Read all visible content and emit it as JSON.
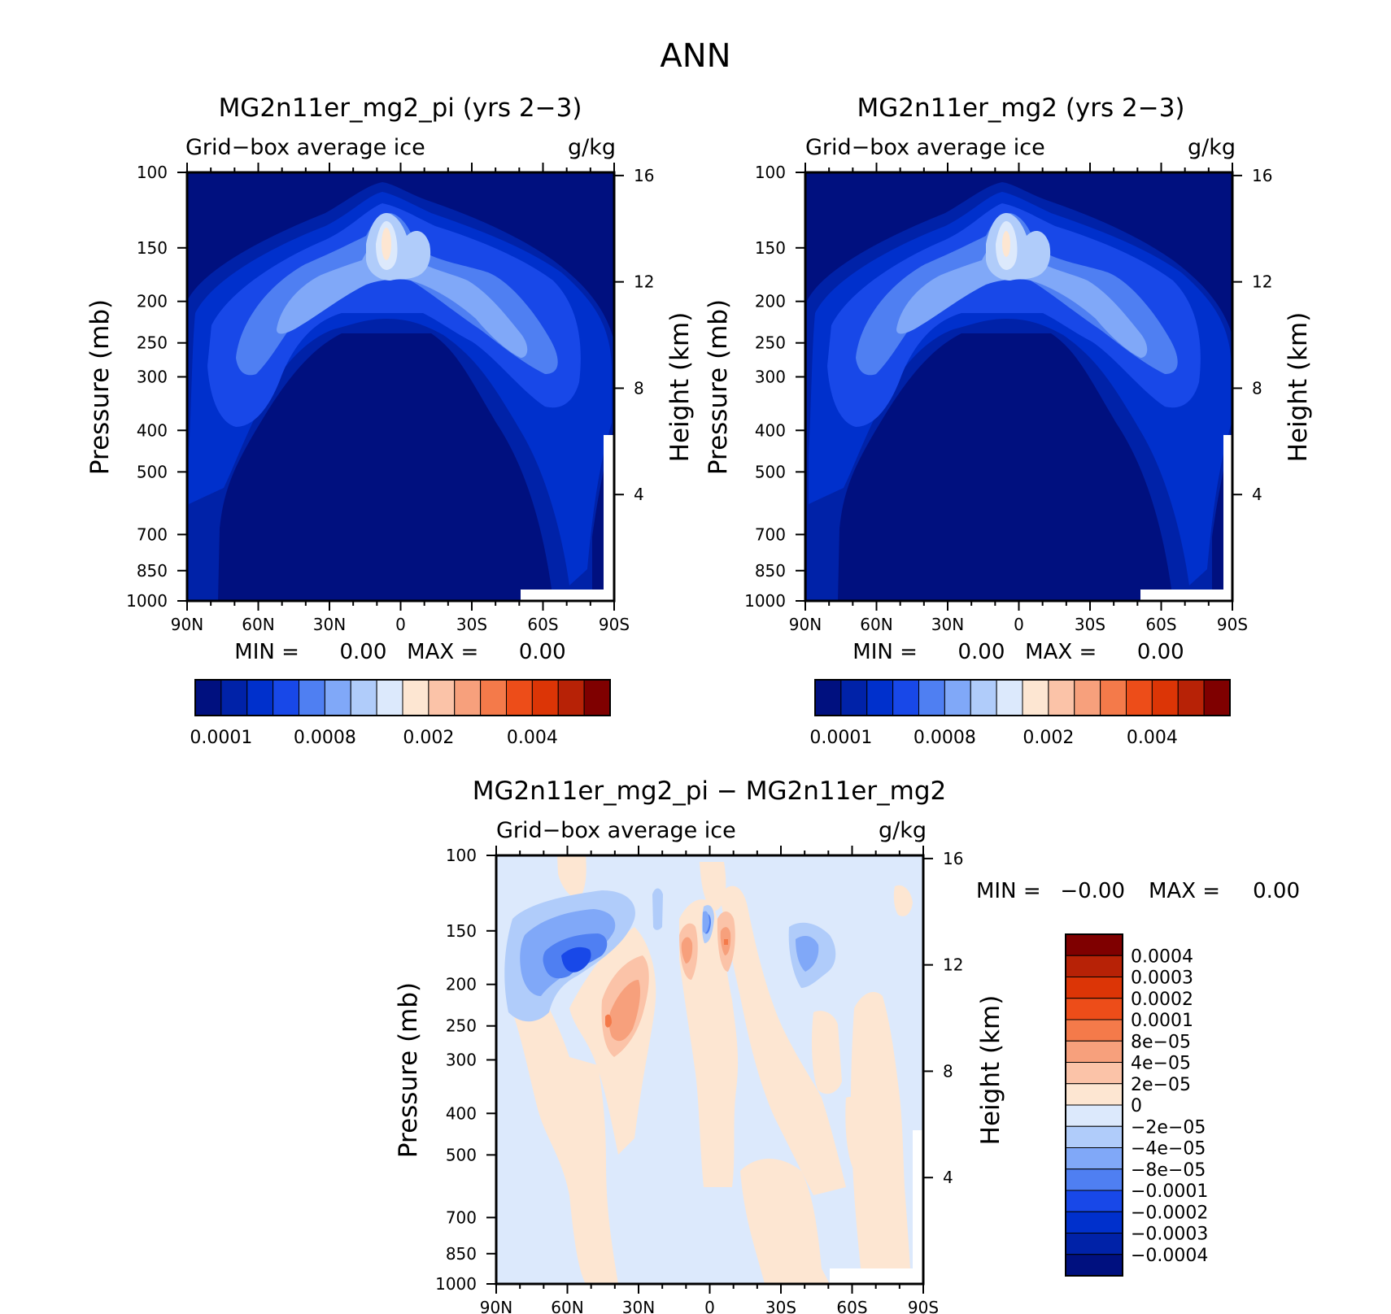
{
  "main_title": "ANN",
  "panels": [
    {
      "title": "MG2n11er_mg2_pi (yrs 2−3)",
      "left_label": "Grid−box average ice",
      "right_label": "g/kg",
      "ylabel_left": "Pressure (mb)",
      "ylabel_right": "Height (km)",
      "min_max": "MIN =      0.00   MAX =      0.00"
    },
    {
      "title": "MG2n11er_mg2 (yrs 2−3)",
      "left_label": "Grid−box average ice",
      "right_label": "g/kg",
      "ylabel_left": "Pressure (mb)",
      "ylabel_right": "Height (km)",
      "min_max": "MIN =      0.00   MAX =      0.00"
    },
    {
      "title": "MG2n11er_mg2_pi − MG2n11er_mg2",
      "left_label": "Grid−box average ice",
      "right_label": "g/kg",
      "ylabel_left": "Pressure (mb)",
      "ylabel_right": "Height (km)",
      "min_label": "MIN =",
      "min_value": "−0.00",
      "max_label": "MAX =",
      "max_value": "0.00"
    }
  ],
  "chart_data": {
    "type": "heatmap",
    "x_ticks": [
      "90N",
      "60N",
      "30N",
      "0",
      "30S",
      "60S",
      "90S"
    ],
    "x_values": [
      90,
      60,
      30,
      0,
      -30,
      -60,
      -90
    ],
    "pressure_ticks": [
      "100",
      "150",
      "200",
      "250",
      "300",
      "400",
      "500",
      "700",
      "850",
      "1000"
    ],
    "pressure_values": [
      100,
      150,
      200,
      250,
      300,
      400,
      500,
      700,
      850,
      1000
    ],
    "height_ticks": [
      "16",
      "12",
      "8",
      "4"
    ],
    "height_values": [
      16,
      12,
      8,
      4
    ],
    "ylim_pressure": [
      1000,
      100
    ],
    "top_colorbar": {
      "colors": [
        "#00107f",
        "#0022a8",
        "#0030cc",
        "#1848e8",
        "#4f7ff2",
        "#80a8f8",
        "#b0ccfa",
        "#dce9fc",
        "#fde6d2",
        "#fbc3a8",
        "#f7a07c",
        "#f47a4a",
        "#ed4d19",
        "#dc3506",
        "#b72206",
        "#7f0000"
      ],
      "tick_labels": [
        "0.0001",
        "0.0008",
        "0.002",
        "0.004"
      ]
    },
    "diff_colorbar": {
      "colors_top_to_bottom": [
        "#7f0000",
        "#b72206",
        "#dc3506",
        "#ed4d19",
        "#f47a4a",
        "#f7a07c",
        "#fbc3a8",
        "#fde6d2",
        "#dce9fc",
        "#b0ccfa",
        "#80a8f8",
        "#4f7ff2",
        "#1848e8",
        "#0030cc",
        "#0022a8",
        "#00107f"
      ],
      "labels": [
        "0.0004",
        "0.0003",
        "0.0002",
        "0.0001",
        "8e−05",
        "4e−05",
        "2e−05",
        "0",
        "−2e−05",
        "−4e−05",
        "−8e−05",
        "−0.0001",
        "−0.0002",
        "−0.0003",
        "−0.0004"
      ]
    },
    "field_colors": {
      "background": "#00107f",
      "level1": "#0022a8",
      "level2": "#0030cc",
      "level3": "#1848e8",
      "level4": "#4f7ff2",
      "level5": "#80a8f8",
      "level6": "#b0ccfa",
      "level7": "#dce9fc",
      "peak": "#fde6d2",
      "diff_neutral": "#dce9fc",
      "diff_pos1": "#fde6d2",
      "diff_pos2": "#fbc3a8",
      "diff_pos3": "#f7a07c",
      "diff_pos4": "#f47a4a",
      "diff_neg1": "#b0ccfa",
      "diff_neg2": "#80a8f8",
      "diff_neg3": "#4f7ff2",
      "diff_neg4": "#1848e8"
    }
  }
}
